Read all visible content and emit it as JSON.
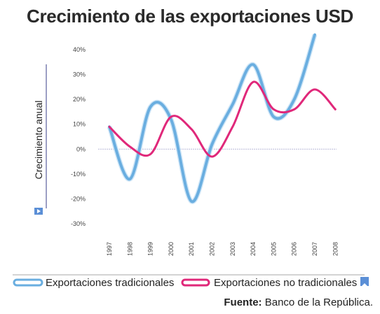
{
  "chart_data": {
    "type": "line",
    "title": "Crecimiento de las exportaciones USD",
    "ylabel": "Crecimiento anual",
    "xlabel": "",
    "categories": [
      "1997",
      "1998",
      "1999",
      "2000",
      "2001",
      "2002",
      "2003",
      "2004",
      "2005",
      "2006",
      "2007",
      "2008"
    ],
    "yticks": [
      "40%",
      "30%",
      "20%",
      "10%",
      "0%",
      "-10%",
      "-20%",
      "-30%"
    ],
    "ylim": [
      -30,
      40
    ],
    "series": [
      {
        "name": "Exportaciones tradicionales",
        "color": "#6aaee0",
        "values": [
          9,
          -12,
          17,
          12,
          -21,
          2,
          18,
          34,
          13,
          20,
          46,
          null
        ]
      },
      {
        "name": "Exportaciones no tradicionales",
        "color": "#e0287a",
        "values": [
          9,
          1,
          -2,
          13,
          8,
          -3,
          9,
          27,
          16,
          16,
          24,
          16
        ]
      }
    ],
    "grid": false,
    "legend": "bottom"
  },
  "source": {
    "label": "Fuente:",
    "text": "Banco de la República."
  }
}
